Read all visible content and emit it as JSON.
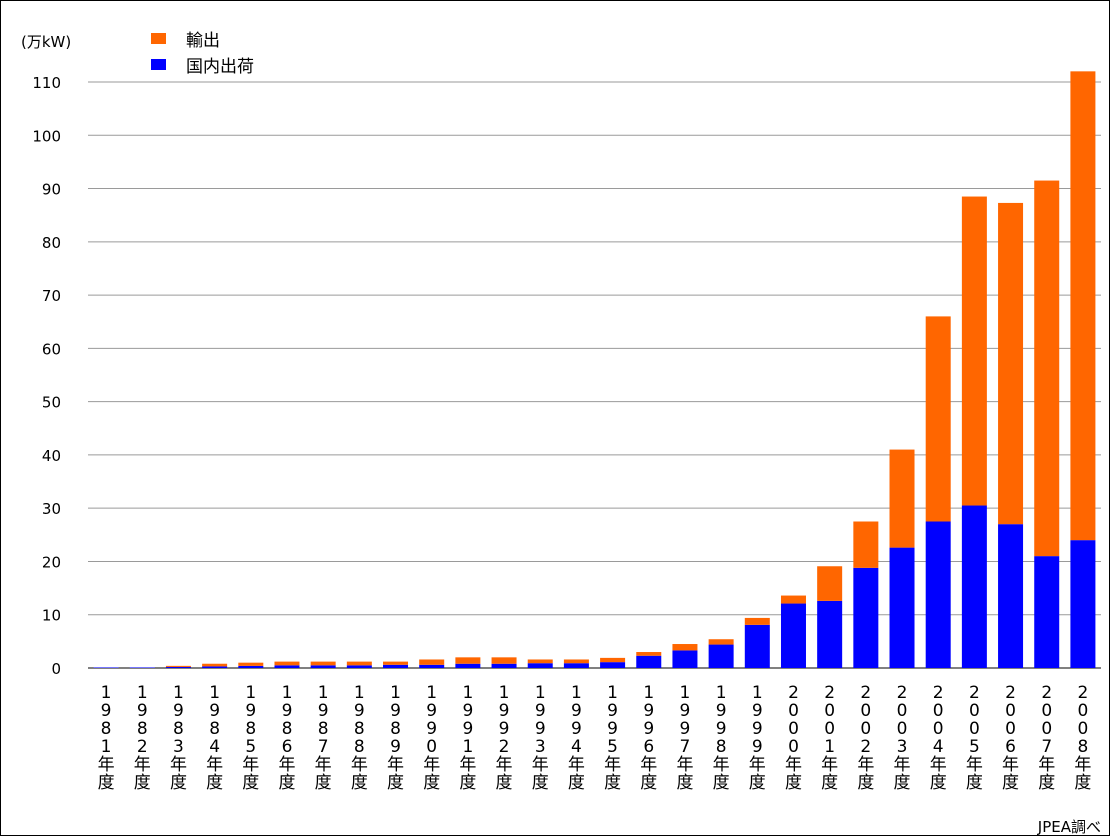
{
  "chart_data": {
    "type": "bar",
    "stacked": true,
    "unit_label": "(万kW)",
    "source_note": "JPEA調べ",
    "ylim": [
      0,
      110
    ],
    "yticks": [
      0,
      10,
      20,
      30,
      40,
      50,
      60,
      70,
      80,
      90,
      100,
      110
    ],
    "grid": true,
    "legend_position": "top-left",
    "categories": [
      "1981年度",
      "1982年度",
      "1983年度",
      "1984年度",
      "1985年度",
      "1986年度",
      "1987年度",
      "1988年度",
      "1989年度",
      "1990年度",
      "1991年度",
      "1992年度",
      "1993年度",
      "1994年度",
      "1995年度",
      "1996年度",
      "1997年度",
      "1998年度",
      "1999年度",
      "2000年度",
      "2001年度",
      "2002年度",
      "2003年度",
      "2004年度",
      "2005年度",
      "2006年度",
      "2007年度",
      "2008年度"
    ],
    "series": [
      {
        "name": "国内出荷",
        "color": "#0000ff",
        "values": [
          0.1,
          0.1,
          0.2,
          0.3,
          0.4,
          0.5,
          0.5,
          0.5,
          0.6,
          0.6,
          0.8,
          0.8,
          0.9,
          0.9,
          1.1,
          2.3,
          3.3,
          4.4,
          8.1,
          12.1,
          12.6,
          18.8,
          22.6,
          27.5,
          30.5,
          27.0,
          21.0,
          24.0
        ]
      },
      {
        "name": "輸出",
        "color": "#ff6600",
        "values": [
          0.0,
          0.0,
          0.2,
          0.5,
          0.6,
          0.7,
          0.7,
          0.7,
          0.6,
          1.0,
          1.2,
          1.2,
          0.7,
          0.7,
          0.8,
          0.7,
          1.2,
          1.0,
          1.3,
          1.5,
          6.5,
          8.7,
          18.4,
          38.5,
          58.0,
          60.3,
          70.5,
          88.0
        ]
      }
    ]
  }
}
